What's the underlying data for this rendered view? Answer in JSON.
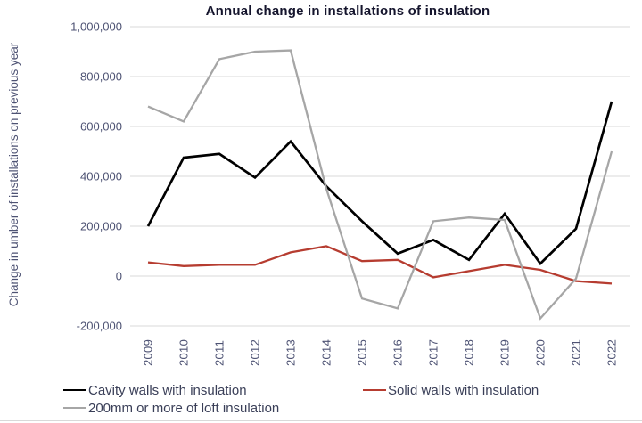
{
  "colors": {
    "background": "#ffffff",
    "gridline": "#d9d9d9",
    "axis_text": "#4d5273",
    "title_text": "#14142c",
    "legend_text": "#3a3f58"
  },
  "chart_data": {
    "type": "line",
    "title": "Annual change in installations of insulation",
    "xlabel": "",
    "ylabel": "Change in umber of installations on previous year",
    "categories": [
      "2009",
      "2010",
      "2011",
      "2012",
      "2013",
      "2014",
      "2015",
      "2016",
      "2017",
      "2018",
      "2019",
      "2020",
      "2021",
      "2022"
    ],
    "series": [
      {
        "name": "Cavity walls with insulation",
        "color": "#000000",
        "values": [
          200000,
          475000,
          490000,
          395000,
          540000,
          360000,
          220000,
          90000,
          145000,
          65000,
          250000,
          50000,
          190000,
          700000
        ]
      },
      {
        "name": "Solid walls with insulation",
        "color": "#b63c30",
        "values": [
          55000,
          40000,
          45000,
          45000,
          95000,
          120000,
          60000,
          65000,
          -5000,
          20000,
          45000,
          25000,
          -20000,
          -30000
        ]
      },
      {
        "name": "200mm or more of loft insulation",
        "color": "#a6a6a6",
        "values": [
          680000,
          620000,
          870000,
          900000,
          905000,
          350000,
          -90000,
          -130000,
          220000,
          235000,
          225000,
          -170000,
          -10000,
          500000
        ]
      }
    ],
    "ylim": [
      -200000,
      1000000
    ],
    "yticks": [
      {
        "value": -200000,
        "label": "-200,000"
      },
      {
        "value": 0,
        "label": "0"
      },
      {
        "value": 200000,
        "label": "200,000"
      },
      {
        "value": 400000,
        "label": "400,000"
      },
      {
        "value": 600000,
        "label": "600,000"
      },
      {
        "value": 800000,
        "label": "800,000"
      },
      {
        "value": 1000000,
        "label": "1,000,000"
      }
    ],
    "grid": true,
    "legend_position": "bottom",
    "x_tick_rotation": -90
  }
}
